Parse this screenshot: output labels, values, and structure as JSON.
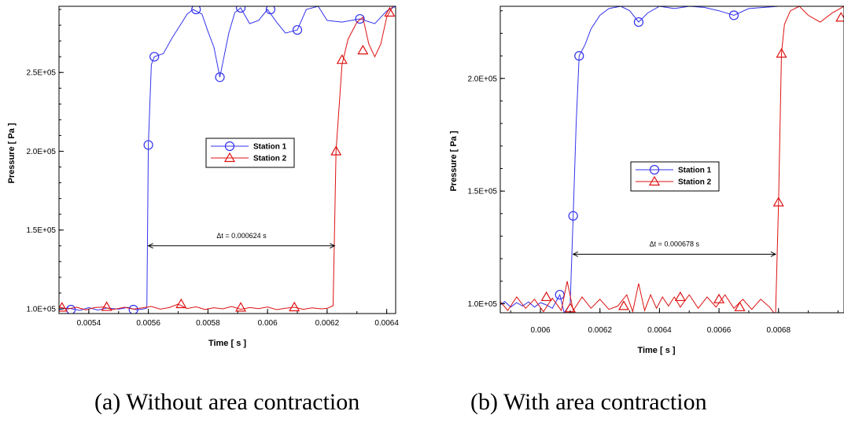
{
  "chart_data": [
    {
      "type": "line",
      "panel": "a",
      "caption": "(a)    Without area contraction",
      "xlabel": "Time [ s ]",
      "ylabel": "Pressure [ Pa ]",
      "xlim": [
        0.0053,
        0.00643
      ],
      "ylim": [
        97000,
        292000
      ],
      "xticks": [
        0.0054,
        0.0056,
        0.0058,
        0.006,
        0.0062,
        0.0064
      ],
      "xtick_labels": [
        "0.0054",
        "0.0056",
        "0.0058",
        "0.006",
        "0.0062",
        "0.0064"
      ],
      "yticks": [
        100000,
        150000,
        200000,
        250000
      ],
      "ytick_labels": [
        "1.0E+05",
        "1.5E+05",
        "2.0E+05",
        "2.5E+05"
      ],
      "legend": {
        "placement": "center"
      },
      "annotation": {
        "text": "Δt = 0.000624 s",
        "x_start": 0.0056,
        "x_end": 0.006225,
        "y": 140000
      },
      "series": [
        {
          "name": "Station 1",
          "color": "#3333ee",
          "marker": "circle",
          "points": [
            [
              0.0053,
              99500
            ],
            [
              0.00533,
              100500
            ],
            [
              0.00537,
              99000
            ],
            [
              0.0054,
              100800
            ],
            [
              0.00543,
              99200
            ],
            [
              0.00546,
              100500
            ],
            [
              0.0055,
              99800
            ],
            [
              0.00553,
              100900
            ],
            [
              0.00556,
              99400
            ],
            [
              0.00558,
              99800
            ],
            [
              0.005595,
              100500
            ],
            [
              0.0056,
              204000
            ],
            [
              0.00561,
              255000
            ],
            [
              0.00562,
              260000
            ],
            [
              0.00565,
              262000
            ],
            [
              0.00568,
              272000
            ],
            [
              0.00571,
              281000
            ],
            [
              0.00573,
              287000
            ],
            [
              0.00575,
              290000
            ],
            [
              0.00578,
              287000
            ],
            [
              0.0058,
              276000
            ],
            [
              0.00582,
              266000
            ],
            [
              0.00584,
              247000
            ],
            [
              0.00587,
              275000
            ],
            [
              0.00589,
              288000
            ],
            [
              0.00591,
              291000
            ],
            [
              0.00594,
              281000
            ],
            [
              0.00597,
              283000
            ],
            [
              0.006,
              290000
            ],
            [
              0.00603,
              282000
            ],
            [
              0.00606,
              275000
            ],
            [
              0.0061,
              277000
            ],
            [
              0.00613,
              290000
            ],
            [
              0.00617,
              292000
            ],
            [
              0.0062,
              283000
            ],
            [
              0.00625,
              282000
            ],
            [
              0.00631,
              284000
            ],
            [
              0.00636,
              281000
            ],
            [
              0.0064,
              289000
            ],
            [
              0.00643,
              292000
            ]
          ],
          "markers": [
            [
              0.00534,
              99500
            ],
            [
              0.00555,
              99500
            ],
            [
              0.0056,
              204000
            ],
            [
              0.00562,
              260000
            ],
            [
              0.00576,
              290000
            ],
            [
              0.00584,
              247000
            ],
            [
              0.00591,
              291000
            ],
            [
              0.00601,
              290000
            ],
            [
              0.0061,
              277000
            ],
            [
              0.00631,
              284000
            ]
          ]
        },
        {
          "name": "Station 2",
          "color": "#dd1111",
          "marker": "triangle",
          "points": [
            [
              0.0053,
              101000
            ],
            [
              0.00533,
              100000
            ],
            [
              0.00536,
              101000
            ],
            [
              0.00539,
              99300
            ],
            [
              0.00542,
              100800
            ],
            [
              0.00545,
              101200
            ],
            [
              0.00548,
              99500
            ],
            [
              0.00552,
              101000
            ],
            [
              0.00555,
              99800
            ],
            [
              0.00558,
              100600
            ],
            [
              0.00561,
              101500
            ],
            [
              0.00564,
              99800
            ],
            [
              0.00567,
              100800
            ],
            [
              0.0057,
              103000
            ],
            [
              0.00573,
              100200
            ],
            [
              0.00576,
              101300
            ],
            [
              0.00579,
              99600
            ],
            [
              0.00582,
              100700
            ],
            [
              0.00585,
              100000
            ],
            [
              0.00588,
              101500
            ],
            [
              0.00591,
              99700
            ],
            [
              0.00594,
              100800
            ],
            [
              0.00597,
              100100
            ],
            [
              0.006,
              101200
            ],
            [
              0.00603,
              99500
            ],
            [
              0.00606,
              100400
            ],
            [
              0.00609,
              101000
            ],
            [
              0.00612,
              99700
            ],
            [
              0.00615,
              100600
            ],
            [
              0.00618,
              100000
            ],
            [
              0.0062,
              100300
            ],
            [
              0.00622,
              102000
            ],
            [
              0.00623,
              200000
            ],
            [
              0.00625,
              255000
            ],
            [
              0.00627,
              271000
            ],
            [
              0.0063,
              282000
            ],
            [
              0.00632,
              285000
            ],
            [
              0.00634,
              268000
            ],
            [
              0.00636,
              260000
            ],
            [
              0.00638,
              268000
            ],
            [
              0.0064,
              285000
            ],
            [
              0.00642,
              292000
            ]
          ],
          "markers": [
            [
              0.00531,
              100800
            ],
            [
              0.00546,
              101200
            ],
            [
              0.00571,
              103000
            ],
            [
              0.00591,
              100800
            ],
            [
              0.00609,
              101000
            ],
            [
              0.00623,
              200000
            ],
            [
              0.00625,
              258000
            ],
            [
              0.00632,
              264000
            ],
            [
              0.00641,
              288000
            ]
          ]
        }
      ]
    },
    {
      "type": "line",
      "panel": "b",
      "caption": "(b) With area contraction",
      "xlabel": "Time [ s ]",
      "ylabel": "Pressure [ Pa ]",
      "xlim": [
        0.005865,
        0.00702
      ],
      "ylim": [
        96000,
        232000
      ],
      "xticks": [
        0.006,
        0.0062,
        0.0064,
        0.0066,
        0.0068
      ],
      "xtick_labels": [
        "0.006",
        "0.0062",
        "0.0064",
        "0.0066",
        "0.0068"
      ],
      "yticks": [
        100000,
        150000,
        200000
      ],
      "ytick_labels": [
        "1.0E+05",
        "1.5E+05",
        "2.0E+05"
      ],
      "legend": {
        "placement": "center-left"
      },
      "annotation": {
        "text": "Δt = 0.000678 s",
        "x_start": 0.00611,
        "x_end": 0.00679,
        "y": 122000
      },
      "series": [
        {
          "name": "Station 1",
          "color": "#3333ee",
          "marker": "circle",
          "points": [
            [
              0.005865,
              99500
            ],
            [
              0.00588,
              101000
            ],
            [
              0.0059,
              98500
            ],
            [
              0.00592,
              100500
            ],
            [
              0.00594,
              99000
            ],
            [
              0.00596,
              100800
            ],
            [
              0.00598,
              98500
            ],
            [
              0.006,
              100500
            ],
            [
              0.00602,
              99500
            ],
            [
              0.00604,
              98000
            ],
            [
              0.006065,
              104000
            ],
            [
              0.00608,
              96000
            ],
            [
              0.0061,
              100000
            ],
            [
              0.00611,
              139000
            ],
            [
              0.00612,
              180000
            ],
            [
              0.00613,
              210000
            ],
            [
              0.00615,
              215000
            ],
            [
              0.00617,
              222000
            ],
            [
              0.0062,
              228000
            ],
            [
              0.00623,
              231000
            ],
            [
              0.00627,
              232000
            ],
            [
              0.0063,
              230000
            ],
            [
              0.00633,
              225000
            ],
            [
              0.00636,
              229000
            ],
            [
              0.0064,
              232000
            ],
            [
              0.00645,
              231000
            ],
            [
              0.0065,
              232000
            ],
            [
              0.00655,
              231500
            ],
            [
              0.0066,
              230000
            ],
            [
              0.00665,
              228000
            ],
            [
              0.0067,
              231000
            ],
            [
              0.0068,
              232000
            ],
            [
              0.0069,
              232000
            ],
            [
              0.00702,
              232000
            ]
          ],
          "markers": [
            [
              0.006065,
              104000
            ],
            [
              0.00611,
              139000
            ],
            [
              0.00613,
              210000
            ],
            [
              0.00633,
              225000
            ],
            [
              0.00665,
              228000
            ]
          ]
        },
        {
          "name": "Station 2",
          "color": "#dd1111",
          "marker": "triangle",
          "points": [
            [
              0.005865,
              101000
            ],
            [
              0.00589,
              97000
            ],
            [
              0.00592,
              103000
            ],
            [
              0.00595,
              98000
            ],
            [
              0.00598,
              102000
            ],
            [
              0.00601,
              96500
            ],
            [
              0.00604,
              102500
            ],
            [
              0.00607,
              97000
            ],
            [
              0.00609,
              110000
            ],
            [
              0.00611,
              97000
            ],
            [
              0.00614,
              103000
            ],
            [
              0.00617,
              98000
            ],
            [
              0.0062,
              102000
            ],
            [
              0.00623,
              97500
            ],
            [
              0.00626,
              99000
            ],
            [
              0.00629,
              104000
            ],
            [
              0.00631,
              96500
            ],
            [
              0.00633,
              109000
            ],
            [
              0.00635,
              97000
            ],
            [
              0.00637,
              104000
            ],
            [
              0.00639,
              98000
            ],
            [
              0.00641,
              103000
            ],
            [
              0.00643,
              99000
            ],
            [
              0.00645,
              103000
            ],
            [
              0.00647,
              98500
            ],
            [
              0.0065,
              104000
            ],
            [
              0.00653,
              98000
            ],
            [
              0.00656,
              103000
            ],
            [
              0.00659,
              98500
            ],
            [
              0.00662,
              104000
            ],
            [
              0.00665,
              98000
            ],
            [
              0.00668,
              102000
            ],
            [
              0.00671,
              97500
            ],
            [
              0.00674,
              102000
            ],
            [
              0.00677,
              98500
            ],
            [
              0.00679,
              95000
            ],
            [
              0.0068,
              145000
            ],
            [
              0.00681,
              211000
            ],
            [
              0.00682,
              224000
            ],
            [
              0.00684,
              230000
            ],
            [
              0.00687,
              232000
            ],
            [
              0.0069,
              228000
            ],
            [
              0.00694,
              225000
            ],
            [
              0.00698,
              229000
            ],
            [
              0.00702,
              232000
            ]
          ],
          "markers": [
            [
              0.00602,
              103000
            ],
            [
              0.0061,
              98000
            ],
            [
              0.00628,
              99000
            ],
            [
              0.00647,
              103000
            ],
            [
              0.0066,
              102000
            ],
            [
              0.00667,
              98500
            ],
            [
              0.0068,
              145000
            ],
            [
              0.00681,
              211000
            ],
            [
              0.00701,
              227000
            ]
          ]
        }
      ]
    }
  ]
}
